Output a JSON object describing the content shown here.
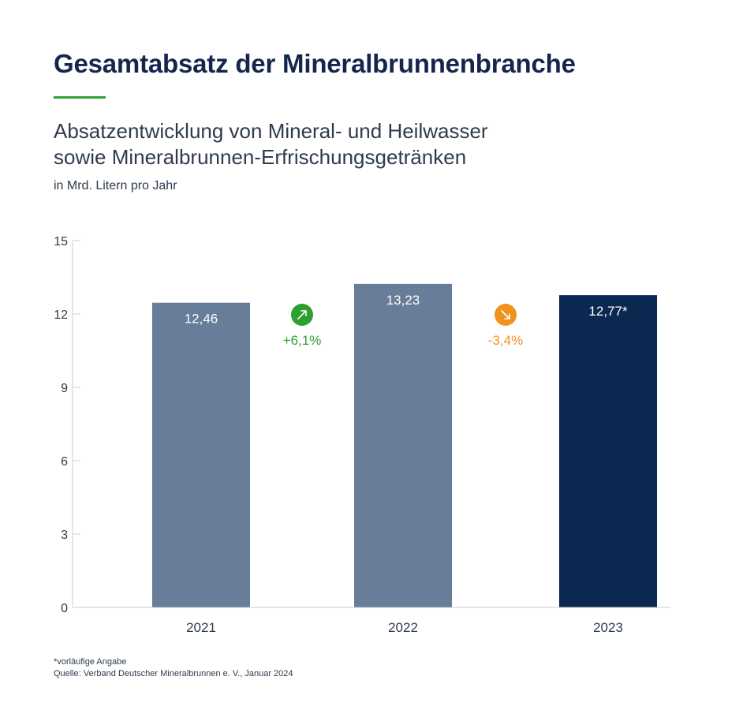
{
  "header": {
    "title": "Gesamtabsatz der Mineralbrunnenbranche",
    "subtitle_line1": "Absatzentwicklung von Mineral- und Heilwasser",
    "subtitle_line2": "sowie Mineralbrunnen-Erfrischungsgetränken",
    "unit": "in Mrd. Litern pro Jahr"
  },
  "colors": {
    "title": "#14264d",
    "accent": "#2ea02e",
    "bar_previous": "#687d99",
    "bar_current": "#0b2850",
    "increase": "#2ea02e",
    "decrease": "#f0921e"
  },
  "chart_data": {
    "type": "bar",
    "categories": [
      "2021",
      "2022",
      "2023"
    ],
    "values": [
      12.46,
      13.23,
      12.77
    ],
    "data_labels": [
      "12,46",
      "13,23",
      "12,77*"
    ],
    "highlight_index": 2,
    "ylim": [
      0,
      15
    ],
    "yticks": [
      0,
      3,
      6,
      9,
      12,
      15
    ],
    "ytick_labels": [
      "0",
      "3",
      "6",
      "9",
      "12",
      "15"
    ],
    "xlabel": "",
    "ylabel": "",
    "changes": [
      {
        "between": [
          "2021",
          "2022"
        ],
        "label": "+6,1%",
        "direction": "up",
        "icon": "arrow-up-right-icon"
      },
      {
        "between": [
          "2022",
          "2023"
        ],
        "label": "-3,4%",
        "direction": "down",
        "icon": "arrow-down-right-icon"
      }
    ]
  },
  "footer": {
    "note": "*vorläufige Angabe",
    "source": "Quelle: Verband Deutscher Mineralbrunnen e. V., Januar 2024"
  }
}
